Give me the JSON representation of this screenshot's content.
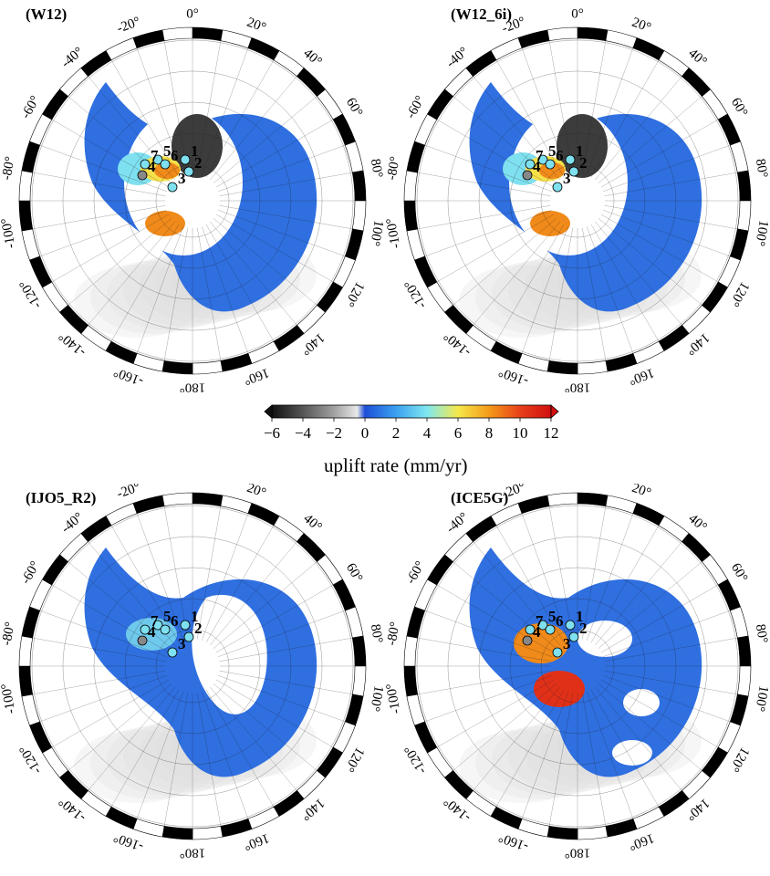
{
  "panels": [
    {
      "label": "(W12)",
      "model": "W12"
    },
    {
      "label": "(W12_6i)",
      "model": "W12_6i"
    },
    {
      "label": "(IJO5_R2)",
      "model": "IJO5_R2"
    },
    {
      "label": "(ICE5G)",
      "model": "ICE5G"
    }
  ],
  "longitude_labels": [
    "-20°",
    "0°",
    "20°",
    "40°",
    "60°",
    "80°",
    "100°",
    "120°",
    "140°",
    "160°",
    "180°",
    "-160°",
    "-140°",
    "-120°",
    "-100°",
    "-80°",
    "-60°",
    "-40°"
  ],
  "site_labels": [
    "1",
    "2",
    "3",
    "4",
    "5",
    "6",
    "7"
  ],
  "colorbar": {
    "title": "uplift rate (mm/yr)",
    "ticks": [
      "−6",
      "−4",
      "−2",
      "0",
      "2",
      "4",
      "6",
      "8",
      "10",
      "12"
    ],
    "range": [
      -6,
      12
    ],
    "stops": [
      {
        "v": -6,
        "c": "#111111"
      },
      {
        "v": -4,
        "c": "#555555"
      },
      {
        "v": -2,
        "c": "#a0a0a0"
      },
      {
        "v": -0.5,
        "c": "#e8e8e8"
      },
      {
        "v": 0,
        "c": "#1d4fd8"
      },
      {
        "v": 2,
        "c": "#3aa0f0"
      },
      {
        "v": 4,
        "c": "#7fe8f0"
      },
      {
        "v": 6,
        "c": "#f5e84a"
      },
      {
        "v": 8,
        "c": "#f59a1a"
      },
      {
        "v": 10,
        "c": "#e8401a"
      },
      {
        "v": 12,
        "c": "#d01010"
      }
    ]
  },
  "colors": {
    "continent_blue": "#2f6fe0",
    "ocean_grey": "#dcdcdc",
    "uplift_hot": "#f08a1a",
    "uplift_yellow": "#f5e04a",
    "cyan": "#7fe0f0",
    "subsidence_dark": "#1a1a1a"
  }
}
